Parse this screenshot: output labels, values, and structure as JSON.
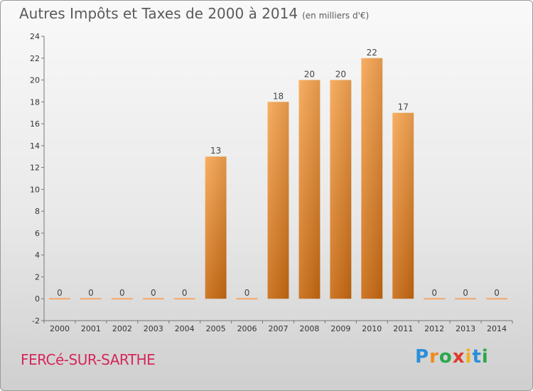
{
  "header": {
    "title": "Autres Impôts et Taxes de 2000 à 2014",
    "subtitle": "(en milliers d'€)"
  },
  "footer": {
    "commune": "FERCé-SUR-SARTHE",
    "logo": {
      "letters": [
        "P",
        "r",
        "o",
        "x",
        "i",
        "t",
        "i"
      ],
      "colors": [
        "#2a8fd9",
        "#f08a1c",
        "#2aa84a",
        "#e03a2a",
        "#f2b01e",
        "#2a8fd9",
        "#2aa84a"
      ]
    }
  },
  "chart_data": {
    "type": "bar",
    "categories": [
      "2000",
      "2001",
      "2002",
      "2003",
      "2004",
      "2005",
      "2006",
      "2007",
      "2008",
      "2009",
      "2010",
      "2011",
      "2012",
      "2013",
      "2014"
    ],
    "values": [
      0,
      0,
      0,
      0,
      0,
      13,
      0,
      18,
      20,
      20,
      22,
      17,
      0,
      0,
      0
    ],
    "data_labels": [
      "0",
      "0",
      "0",
      "0",
      "0",
      "13",
      "0",
      "18",
      "20",
      "20",
      "22",
      "17",
      "0",
      "0",
      "0"
    ],
    "ylim": [
      -2,
      24
    ],
    "yticks": [
      -2,
      0,
      2,
      4,
      6,
      8,
      10,
      12,
      14,
      16,
      18,
      20,
      22,
      24
    ],
    "grid": false,
    "bar_color": "#f0922e",
    "zero_bar_color": "#f4a86a"
  }
}
